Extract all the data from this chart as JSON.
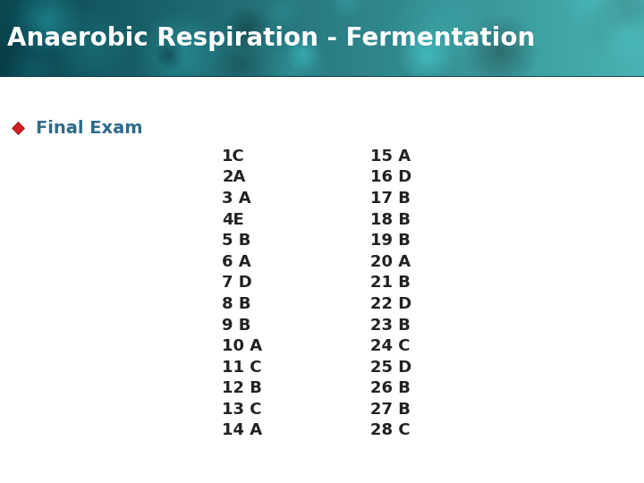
{
  "title": "Anaerobic Respiration - Fermentation",
  "subtitle": "Final Exam",
  "col1": [
    "1C",
    "2A",
    "3 A",
    "4E",
    "5 B",
    "6 A",
    "7 D",
    "8 B",
    "9 B",
    "10 A",
    "11 C",
    "12 B",
    "13 C",
    "14 A"
  ],
  "col2": [
    "15 A",
    "16 D",
    "17 B",
    "18 B",
    "19 B",
    "20 A",
    "21 B",
    "22 D",
    "23 B",
    "24 C",
    "25 D",
    "26 B",
    "27 B",
    "28 C"
  ],
  "title_text_color": "#FFFFFF",
  "bg_color": "#FFFFFF",
  "subtitle_color": "#2E6B8A",
  "answer_color": "#222222",
  "bullet_color": "#CC2222",
  "title_fontsize": 20,
  "subtitle_fontsize": 14,
  "answer_fontsize": 13,
  "banner_teal_left": "#1A6E7A",
  "banner_teal_mid": "#2AACB8",
  "banner_teal_right": "#60C8CC",
  "banner_dark": "#0A3A4A"
}
